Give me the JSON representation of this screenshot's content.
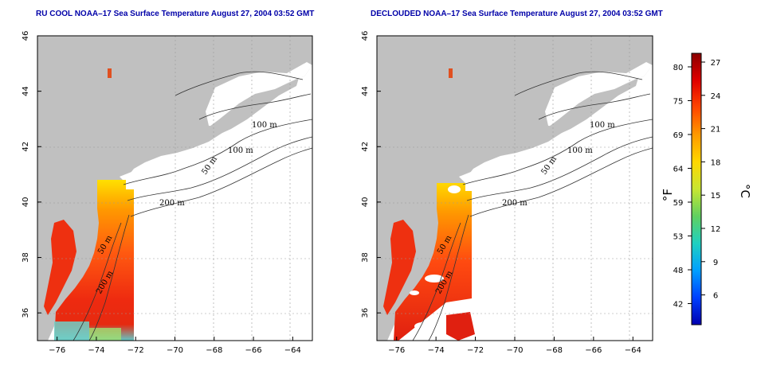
{
  "panels": [
    {
      "title": "RU COOL NOAA–17 Sea Surface Temperature August 27, 2004 03:52 GMT"
    },
    {
      "title": "DECLOUDED NOAA–17 Sea Surface Temperature August 27, 2004 03:52 GMT"
    }
  ],
  "x_ticks": [
    "−76",
    "−74",
    "−72",
    "−70",
    "−68",
    "−66",
    "−64"
  ],
  "y_ticks": [
    "46",
    "44",
    "42",
    "40",
    "38",
    "36"
  ],
  "contour_labels": [
    "100 m",
    "100 m",
    "50 m",
    "200 m",
    "50 m",
    "200 m"
  ],
  "colorbar": {
    "fahrenheit_ticks": [
      "80",
      "75",
      "69",
      "64",
      "59",
      "53",
      "48",
      "42"
    ],
    "celsius_ticks": [
      "27",
      "24",
      "21",
      "18",
      "15",
      "12",
      "9",
      "6"
    ],
    "fahrenheit_unit": "°F",
    "celsius_unit": "°C",
    "colors": [
      "#8b0000",
      "#e00000",
      "#ff4500",
      "#ff9900",
      "#ffd700",
      "#c8e632",
      "#60d060",
      "#20d0c0",
      "#00a0ff",
      "#0040ff",
      "#0000b0"
    ]
  },
  "colors": {
    "land": "#c0c0c0",
    "title": "#0000a8",
    "grid": "#999999"
  }
}
